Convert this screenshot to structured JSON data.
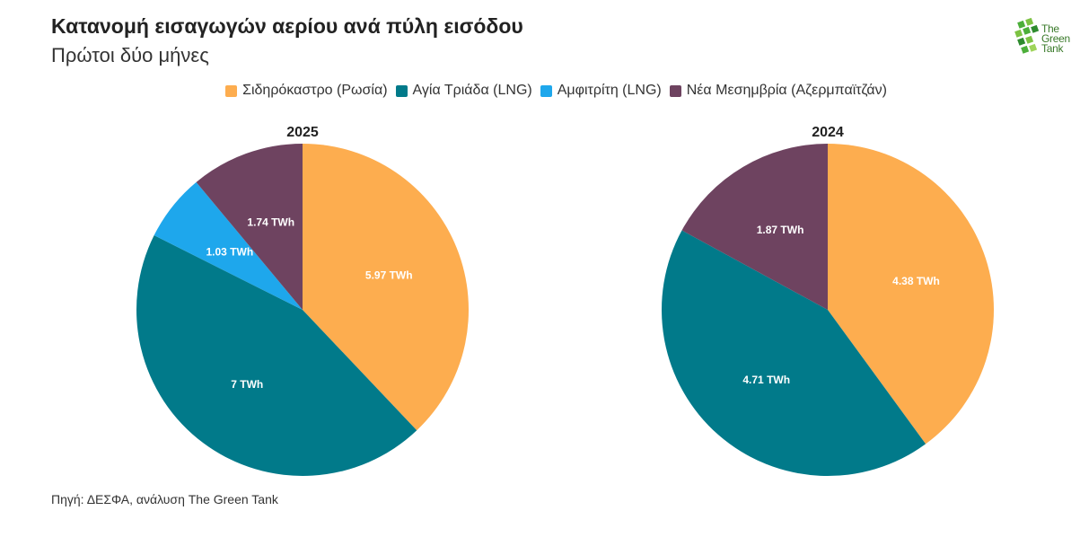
{
  "header": {
    "title": "Κατανομή εισαγωγών αερίου ανά πύλη εισόδου",
    "subtitle": "Πρώτοι δύο μήνες"
  },
  "logo": {
    "line1": "The",
    "line2": "Green",
    "line3": "Tank",
    "color": "#3a8a2a"
  },
  "legend": [
    {
      "name": "Σιδηρόκαστρο (Ρωσία)",
      "color": "#FDAD4F"
    },
    {
      "name": "Αγία Τριάδα (LNG)",
      "color": "#017A8A"
    },
    {
      "name": "Αμφιτρίτη (LNG)",
      "color": "#1EA7EC"
    },
    {
      "name": "Νέα Μεσημβρία (Αζερμπαϊτζάν)",
      "color": "#6E4360"
    }
  ],
  "chart_data": [
    {
      "type": "pie",
      "title": "2025",
      "unit": "TWh",
      "slices": [
        {
          "name": "Σιδηρόκαστρο (Ρωσία)",
          "value": 5.97,
          "label": "5.97 TWh",
          "color": "#FDAD4F"
        },
        {
          "name": "Αγία Τριάδα (LNG)",
          "value": 7.0,
          "label": "7 TWh",
          "color": "#017A8A"
        },
        {
          "name": "Αμφιτρίτη (LNG)",
          "value": 1.03,
          "label": "1.03 TWh",
          "color": "#1EA7EC"
        },
        {
          "name": "Νέα Μεσημβρία (Αζερμπαϊτζάν)",
          "value": 1.74,
          "label": "1.74 TWh",
          "color": "#6E4360"
        }
      ]
    },
    {
      "type": "pie",
      "title": "2024",
      "unit": "TWh",
      "slices": [
        {
          "name": "Σιδηρόκαστρο (Ρωσία)",
          "value": 4.38,
          "label": "4.38 TWh",
          "color": "#FDAD4F"
        },
        {
          "name": "Αγία Τριάδα (LNG)",
          "value": 4.71,
          "label": "4.71 TWh",
          "color": "#017A8A"
        },
        {
          "name": "Νέα Μεσημβρία (Αζερμπαϊτζάν)",
          "value": 1.87,
          "label": "1.87 TWh",
          "color": "#6E4360"
        }
      ]
    }
  ],
  "footer": {
    "source": "Πηγή: ΔΕΣΦΑ, ανάλυση The Green Tank"
  }
}
